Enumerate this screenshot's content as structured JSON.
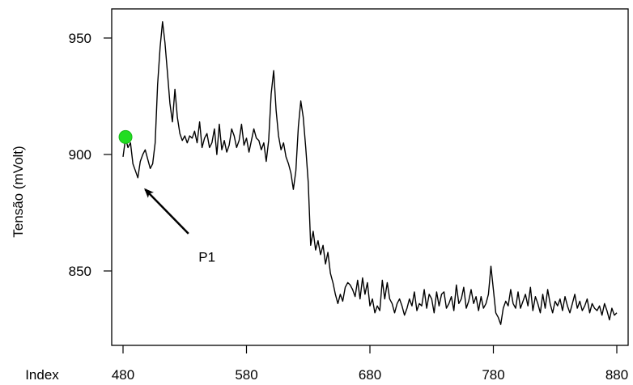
{
  "chart_data": {
    "type": "line",
    "title": "",
    "xlabel": "Index",
    "ylabel": "Tensão (mVolt)",
    "xlim": [
      480,
      880
    ],
    "ylim": [
      820,
      962
    ],
    "xticks": [
      480,
      580,
      680,
      780,
      880
    ],
    "xtick_labels": [
      "480",
      "580",
      "680",
      "780",
      "880"
    ],
    "yticks": [
      850,
      900,
      950
    ],
    "ytick_labels": [
      "850",
      "900",
      "950"
    ],
    "grid": false,
    "legend": "none",
    "colors": {
      "line": "#000000",
      "marker": "#22dd22",
      "arrow": "#000000"
    },
    "series": [
      {
        "x": [
          480,
          482,
          484,
          486,
          488,
          490,
          492,
          494,
          496,
          498,
          500,
          502,
          504,
          506,
          508,
          510,
          512,
          514,
          516,
          518,
          520,
          522,
          524,
          526,
          528,
          530,
          532,
          534,
          536,
          538,
          540,
          542,
          544,
          546,
          548,
          550,
          552,
          554,
          556,
          558,
          560,
          562,
          564,
          566,
          568,
          570,
          572,
          574,
          576,
          578,
          580,
          582,
          584,
          586,
          588,
          590,
          592,
          594,
          596,
          598,
          600,
          602,
          604,
          606,
          608,
          610,
          612,
          614,
          616,
          618,
          620,
          622,
          624,
          626,
          628,
          630,
          632,
          634,
          636,
          638,
          640,
          642,
          644,
          646,
          648,
          650,
          652,
          654,
          656,
          658,
          660,
          662,
          664,
          666,
          668,
          670,
          672,
          674,
          676,
          678,
          680,
          682,
          684,
          686,
          688,
          690,
          692,
          694,
          696,
          698,
          700,
          702,
          704,
          706,
          708,
          710,
          712,
          714,
          716,
          718,
          720,
          722,
          724,
          726,
          728,
          730,
          732,
          734,
          736,
          738,
          740,
          742,
          744,
          746,
          748,
          750,
          752,
          754,
          756,
          758,
          760,
          762,
          764,
          766,
          768,
          770,
          772,
          774,
          776,
          778,
          780,
          782,
          784,
          786,
          788,
          790,
          792,
          794,
          796,
          798,
          800,
          802,
          804,
          806,
          808,
          810,
          812,
          814,
          816,
          818,
          820,
          822,
          824,
          826,
          828,
          830,
          832,
          834,
          836,
          838,
          840,
          842,
          844,
          846,
          848,
          850,
          852,
          854,
          856,
          858,
          860,
          862,
          864,
          866,
          868,
          870,
          872,
          874,
          876,
          878,
          880
        ],
        "values": [
          899,
          907,
          903,
          905,
          896,
          893,
          890,
          897,
          900,
          902,
          898,
          894,
          896,
          905,
          930,
          946,
          957,
          948,
          935,
          922,
          914,
          928,
          916,
          909,
          906,
          908,
          905,
          908,
          907,
          910,
          905,
          914,
          903,
          907,
          909,
          903,
          905,
          911,
          900,
          913,
          902,
          906,
          901,
          904,
          911,
          908,
          903,
          906,
          913,
          904,
          907,
          901,
          906,
          911,
          907,
          906,
          902,
          905,
          897,
          906,
          926,
          936,
          919,
          908,
          902,
          905,
          899,
          896,
          892,
          885,
          893,
          912,
          923,
          916,
          903,
          888,
          861,
          867,
          859,
          863,
          857,
          861,
          853,
          858,
          849,
          845,
          840,
          836,
          840,
          837,
          843,
          845,
          844,
          842,
          839,
          846,
          838,
          847,
          840,
          845,
          835,
          838,
          832,
          835,
          833,
          846,
          838,
          845,
          838,
          836,
          832,
          836,
          838,
          835,
          831,
          834,
          838,
          835,
          841,
          833,
          836,
          835,
          842,
          834,
          840,
          838,
          832,
          841,
          835,
          840,
          841,
          834,
          836,
          839,
          833,
          844,
          836,
          838,
          843,
          834,
          837,
          842,
          836,
          839,
          833,
          839,
          834,
          836,
          840,
          852,
          842,
          832,
          830,
          827,
          834,
          837,
          835,
          842,
          836,
          834,
          841,
          834,
          837,
          840,
          835,
          843,
          833,
          839,
          836,
          832,
          840,
          834,
          842,
          836,
          832,
          837,
          835,
          838,
          833,
          839,
          835,
          832,
          836,
          840,
          834,
          837,
          833,
          835,
          838,
          832,
          836,
          834,
          833,
          835,
          831,
          836,
          833,
          829,
          834,
          831,
          832
        ]
      }
    ],
    "highlight_point": {
      "x": 482,
      "y": 907.5
    },
    "annotations": [
      {
        "text": "P1",
        "arrow_tail": {
          "x": 533,
          "y": 866
        },
        "arrow_head": {
          "x": 498,
          "y": 885
        },
        "text_at": {
          "x": 548,
          "y": 854
        }
      }
    ]
  }
}
